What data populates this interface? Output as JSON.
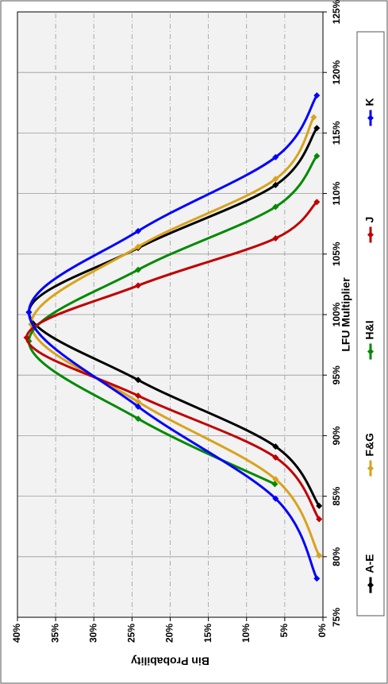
{
  "chart_data": {
    "type": "line",
    "xlabel": "LFU Multiplier",
    "ylabel": "Bin Probability",
    "xlim": [
      75,
      125
    ],
    "xticks": [
      {
        "value": 75,
        "label": "75%"
      },
      {
        "value": 80,
        "label": "80%"
      },
      {
        "value": 85,
        "label": "85%"
      },
      {
        "value": 90,
        "label": "90%"
      },
      {
        "value": 95,
        "label": "95%"
      },
      {
        "value": 100,
        "label": "100%"
      },
      {
        "value": 105,
        "label": "105%"
      },
      {
        "value": 110,
        "label": "110%"
      },
      {
        "value": 115,
        "label": "115%"
      },
      {
        "value": 120,
        "label": "120%"
      },
      {
        "value": 125,
        "label": "125%"
      }
    ],
    "ylim": [
      0,
      40
    ],
    "yticks": [
      {
        "value": 0,
        "label": "0%"
      },
      {
        "value": 5,
        "label": "5%"
      },
      {
        "value": 10,
        "label": "10%"
      },
      {
        "value": 15,
        "label": "15%"
      },
      {
        "value": 20,
        "label": "20%"
      },
      {
        "value": 25,
        "label": "25%"
      },
      {
        "value": 30,
        "label": "30%"
      },
      {
        "value": 35,
        "label": "35%"
      },
      {
        "value": 40,
        "label": "40%"
      }
    ],
    "grid": true,
    "legend": "bottom",
    "rotated": true,
    "series": [
      {
        "name": "A-E",
        "color": "#000000",
        "x": [
          84.2,
          89.1,
          94.6,
          100.2,
          105.5,
          110.7,
          115.4
        ],
        "values": [
          0.5,
          6.2,
          24.2,
          38.5,
          24.2,
          6.2,
          0.8
        ]
      },
      {
        "name": "F&G",
        "color": "#d9a21b",
        "x": [
          80.1,
          86.4,
          92.8,
          99.2,
          105.6,
          111.2,
          116.3
        ],
        "values": [
          0.5,
          6.2,
          24.2,
          38.2,
          24.2,
          6.2,
          1.2
        ]
      },
      {
        "name": "H&I",
        "color": "#008a00",
        "x": [
          86.0,
          91.4,
          97.8,
          103.7,
          108.9,
          113.1
        ],
        "values": [
          6.3,
          24.2,
          38.5,
          24.2,
          6.2,
          0.8
        ]
      },
      {
        "name": "J",
        "color": "#c00000",
        "x": [
          83.1,
          88.2,
          93.3,
          98.1,
          102.4,
          106.3,
          109.3
        ],
        "values": [
          0.5,
          6.2,
          24.2,
          38.8,
          24.2,
          6.2,
          0.8
        ]
      },
      {
        "name": "K",
        "color": "#0000ff",
        "x": [
          78.2,
          84.8,
          92.4,
          100.2,
          106.9,
          113.0,
          118.1
        ],
        "values": [
          0.8,
          6.2,
          24.2,
          38.5,
          24.2,
          6.2,
          0.8
        ]
      }
    ]
  }
}
